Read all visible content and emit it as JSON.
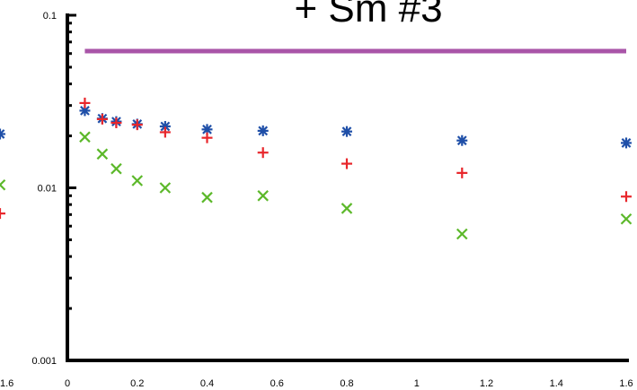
{
  "chart_data": {
    "type": "scatter",
    "title": "+ Sm   #3",
    "xlabel": "",
    "ylabel": "",
    "xlim": [
      0,
      1.6
    ],
    "ylim": [
      0.001,
      0.1
    ],
    "yscale": "log",
    "grid": false,
    "x_ticks": [
      0,
      0.2,
      0.4,
      0.6,
      0.8,
      1,
      1.2,
      1.4,
      1.6
    ],
    "x_tick_labels": [
      "0",
      "0.2",
      "0.4",
      "0.6",
      "0.8",
      "1",
      "1.2",
      "1.4",
      "1.6"
    ],
    "y_ticks": [
      0.001,
      0.01,
      0.1
    ],
    "y_tick_labels": [
      "0.001",
      "0.01",
      "0.1"
    ],
    "left_edge_x_label": "1.6",
    "colors": {
      "blue": "#1f4fa8",
      "red": "#e8262b",
      "green": "#5cb82a",
      "purple": "#a955a8"
    },
    "series": [
      {
        "marker": "asterisk",
        "color": "#1f4fa8",
        "x": [
          0.05,
          0.1,
          0.14,
          0.2,
          0.28,
          0.4,
          0.56,
          0.8,
          1.13,
          1.6
        ],
        "y": [
          0.028,
          0.0252,
          0.0242,
          0.0234,
          0.0227,
          0.0218,
          0.0214,
          0.0212,
          0.0188,
          0.0182
        ]
      },
      {
        "marker": "plus",
        "color": "#e8262b",
        "x": [
          0.05,
          0.1,
          0.14,
          0.2,
          0.28,
          0.4,
          0.56,
          0.8,
          1.13,
          1.6
        ],
        "y": [
          0.031,
          0.025,
          0.0238,
          0.0232,
          0.021,
          0.0195,
          0.016,
          0.0138,
          0.0122,
          0.0089
        ]
      },
      {
        "marker": "cross",
        "color": "#5cb82a",
        "x": [
          0.05,
          0.1,
          0.14,
          0.2,
          0.28,
          0.4,
          0.56,
          0.8,
          1.13,
          1.6
        ],
        "y": [
          0.0197,
          0.0157,
          0.0129,
          0.011,
          0.01,
          0.0088,
          0.009,
          0.0076,
          0.0054,
          0.0066
        ]
      }
    ],
    "reference_line": {
      "color": "#a955a8",
      "y": 0.062,
      "x_start": 0.05,
      "x_end": 1.6
    },
    "left_edge_markers": [
      {
        "marker": "asterisk",
        "color": "#1f4fa8",
        "y": 0.0205
      },
      {
        "marker": "cross",
        "color": "#5cb82a",
        "y": 0.0104
      },
      {
        "marker": "plus",
        "color": "#e8262b",
        "y": 0.0071
      }
    ]
  }
}
